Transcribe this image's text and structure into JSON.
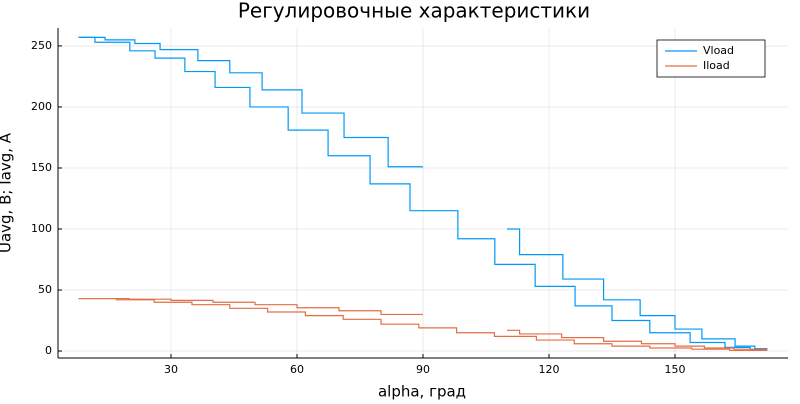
{
  "chart_data": {
    "type": "line",
    "title": "Регулировочные характеристики",
    "x_label": "alpha, град",
    "y_label": "Uavg, B; Iavg, A",
    "xlim": [
      3.1,
      176.9
    ],
    "ylim": [
      -5.7,
      264.7
    ],
    "xticks": [
      30,
      60,
      90,
      120,
      150
    ],
    "yticks": [
      0,
      50,
      100,
      150,
      200,
      250
    ],
    "grid": true,
    "legend": "top-right",
    "series": [
      {
        "name": "Vload",
        "color": "#009af9",
        "x": [
          8,
          14.3,
          14.3,
          21.4,
          21.4,
          27.4,
          27.4,
          36.4,
          36.4,
          44,
          44,
          51.7,
          51.7,
          61.2,
          61.2,
          71.2,
          71.2,
          81.7,
          81.7,
          90,
          null,
          110,
          113,
          113,
          123.3,
          123.3,
          133,
          133,
          141.7,
          141.7,
          150,
          150,
          156.4,
          156.4,
          164.3,
          164.3,
          169,
          169,
          172,
          null,
          8,
          11.9,
          11.9,
          20.2,
          20.2,
          26.2,
          26.2,
          33.3,
          33.3,
          40.5,
          40.5,
          48.8,
          48.8,
          57.9,
          57.9,
          67.4,
          67.4,
          77.4,
          77.4,
          86.9,
          86.9,
          98.3,
          98.3,
          107.1,
          107.1,
          116.7,
          116.7,
          126.2,
          126.2,
          135,
          135,
          144,
          144,
          153.6,
          153.6,
          161.9,
          161.9,
          167.9,
          167.9,
          172
        ],
        "values": [
          257,
          257,
          255,
          255,
          252,
          252,
          247,
          247,
          238,
          238,
          228,
          228,
          214,
          214,
          195,
          195,
          175,
          175,
          151,
          151,
          null,
          100,
          100,
          79,
          79,
          59,
          59,
          42,
          42,
          29,
          29,
          18,
          18,
          10,
          10,
          4,
          4,
          2,
          2,
          null,
          257,
          257,
          253,
          253,
          246,
          246,
          240,
          240,
          229,
          229,
          216,
          216,
          200,
          200,
          181,
          181,
          160,
          160,
          137,
          137,
          115,
          115,
          92,
          92,
          71,
          71,
          53,
          53,
          37,
          37,
          25,
          25,
          15,
          15,
          7,
          7,
          3,
          3,
          1,
          1
        ]
      },
      {
        "name": "Iload",
        "color": "#e26f46",
        "x": [
          8,
          20,
          20,
          30,
          30,
          40,
          40,
          50,
          50,
          60,
          60,
          70,
          70,
          80,
          80,
          90,
          null,
          110,
          113,
          113,
          123,
          123,
          133,
          133,
          142,
          142,
          150,
          150,
          157,
          157,
          164,
          164,
          172,
          null,
          8,
          17,
          17,
          26,
          26,
          35,
          35,
          44,
          44,
          53,
          53,
          62,
          62,
          71,
          71,
          80,
          80,
          89,
          89,
          98,
          98,
          107,
          107,
          117,
          117,
          126,
          126,
          135,
          135,
          144,
          144,
          154,
          154,
          163,
          163,
          172
        ],
        "values": [
          43,
          43,
          42.5,
          42.5,
          41.5,
          41.5,
          40,
          40,
          38,
          38,
          35.5,
          35.5,
          33,
          33,
          30,
          30,
          null,
          17,
          17,
          14,
          14,
          11,
          11,
          8,
          8,
          6,
          6,
          4,
          4,
          2.5,
          2.5,
          1.5,
          1.5,
          null,
          43,
          43,
          42,
          42,
          40,
          40,
          38,
          38,
          35,
          35,
          32,
          32,
          29,
          29,
          26,
          26,
          22,
          22,
          19,
          19,
          15,
          15,
          12,
          12,
          9,
          9,
          6,
          6,
          4,
          4,
          2.5,
          2.5,
          1.5,
          1.5,
          0.5,
          0.5
        ]
      }
    ]
  }
}
